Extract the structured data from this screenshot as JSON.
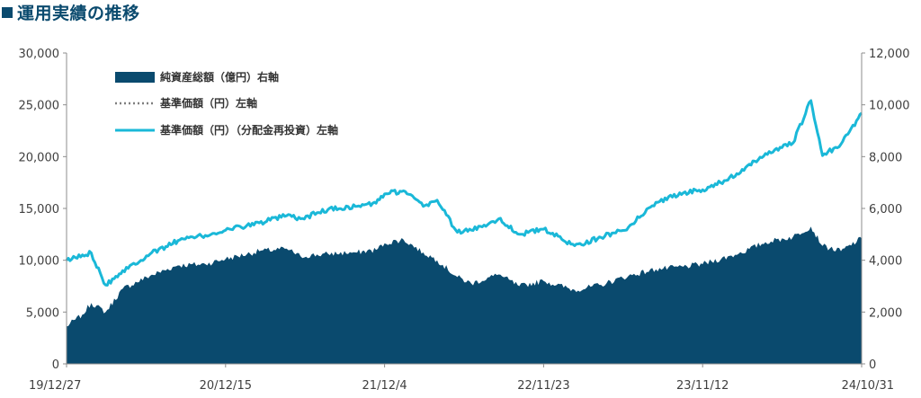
{
  "page": {
    "title": "運用実績の推移"
  },
  "chart_data": {
    "type": "line",
    "title": "運用実績の推移",
    "xlabel": "",
    "ylabel": "",
    "x_tick_labels": [
      "19/12/27",
      "20/12/15",
      "21/12/4",
      "22/11/23",
      "23/11/12",
      "24/10/31"
    ],
    "x_range": [
      "2019-12-27",
      "2024-10-31"
    ],
    "y_left": {
      "min": 0,
      "max": 30000,
      "ticks": [
        0,
        5000,
        10000,
        15000,
        20000,
        25000,
        30000
      ],
      "tick_labels": [
        "0",
        "5,000",
        "10,000",
        "15,000",
        "20,000",
        "25,000",
        "30,000"
      ]
    },
    "y_right": {
      "min": 0,
      "max": 12000,
      "ticks": [
        0,
        2000,
        4000,
        6000,
        8000,
        10000,
        12000
      ],
      "tick_labels": [
        "0",
        "2,000",
        "4,000",
        "6,000",
        "8,000",
        "10,000",
        "12,000"
      ]
    },
    "grid": false,
    "legend_position": "top-left",
    "series": [
      {
        "name": "純資産総額（億円）右軸",
        "kind": "area",
        "axis": "right",
        "color": "#0a4a6e",
        "points": [
          [
            "2019-12-27",
            1450
          ],
          [
            "2020-01-31",
            1900
          ],
          [
            "2020-02-20",
            2350
          ],
          [
            "2020-03-23",
            2000
          ],
          [
            "2020-04-30",
            2900
          ],
          [
            "2020-06-30",
            3400
          ],
          [
            "2020-08-31",
            3800
          ],
          [
            "2020-10-31",
            3850
          ],
          [
            "2020-12-15",
            4050
          ],
          [
            "2021-02-28",
            4350
          ],
          [
            "2021-04-30",
            4450
          ],
          [
            "2021-05-31",
            4150
          ],
          [
            "2021-07-31",
            4250
          ],
          [
            "2021-09-30",
            4300
          ],
          [
            "2021-11-15",
            4400
          ],
          [
            "2021-12-04",
            4650
          ],
          [
            "2022-01-15",
            4800
          ],
          [
            "2022-02-28",
            4300
          ],
          [
            "2022-03-31",
            4000
          ],
          [
            "2022-05-15",
            3350
          ],
          [
            "2022-06-15",
            3100
          ],
          [
            "2022-08-15",
            3450
          ],
          [
            "2022-09-30",
            3000
          ],
          [
            "2022-11-23",
            3200
          ],
          [
            "2023-01-31",
            2850
          ],
          [
            "2023-03-31",
            3050
          ],
          [
            "2023-05-31",
            3400
          ],
          [
            "2023-07-31",
            3650
          ],
          [
            "2023-09-30",
            3750
          ],
          [
            "2023-11-12",
            3850
          ],
          [
            "2024-01-31",
            4250
          ],
          [
            "2024-03-31",
            4700
          ],
          [
            "2024-05-31",
            4900
          ],
          [
            "2024-07-10",
            5300
          ],
          [
            "2024-08-05",
            4550
          ],
          [
            "2024-09-15",
            4350
          ],
          [
            "2024-10-31",
            4850
          ]
        ]
      },
      {
        "name": "基準価額（円）左軸",
        "kind": "dotted-line",
        "axis": "left",
        "color": "#7f7f7f",
        "points": [
          [
            "2019-12-27",
            10000
          ],
          [
            "2020-02-20",
            10700
          ],
          [
            "2020-03-23",
            7600
          ],
          [
            "2020-04-30",
            9000
          ],
          [
            "2020-06-30",
            10600
          ],
          [
            "2020-08-31",
            11900
          ],
          [
            "2020-10-31",
            12400
          ],
          [
            "2020-12-15",
            12900
          ],
          [
            "2021-02-28",
            13600
          ],
          [
            "2021-04-30",
            14300
          ],
          [
            "2021-05-31",
            14000
          ],
          [
            "2021-07-31",
            14900
          ],
          [
            "2021-09-30",
            15200
          ],
          [
            "2021-11-15",
            15500
          ],
          [
            "2021-12-04",
            16400
          ],
          [
            "2022-01-15",
            16700
          ],
          [
            "2022-02-28",
            15200
          ],
          [
            "2022-03-31",
            15800
          ],
          [
            "2022-05-15",
            12700
          ],
          [
            "2022-06-15",
            12900
          ],
          [
            "2022-08-15",
            14000
          ],
          [
            "2022-09-30",
            12500
          ],
          [
            "2022-11-23",
            13000
          ],
          [
            "2023-01-31",
            11400
          ],
          [
            "2023-03-31",
            12200
          ],
          [
            "2023-05-31",
            13200
          ],
          [
            "2023-07-31",
            15600
          ],
          [
            "2023-09-30",
            16500
          ],
          [
            "2023-11-12",
            16800
          ],
          [
            "2024-01-31",
            18300
          ],
          [
            "2024-03-31",
            20300
          ],
          [
            "2024-05-31",
            21300
          ],
          [
            "2024-07-10",
            25400
          ],
          [
            "2024-08-05",
            20100
          ],
          [
            "2024-09-15",
            21200
          ],
          [
            "2024-10-31",
            24200
          ]
        ]
      },
      {
        "name": "基準価額（円）（分配金再投資）左軸",
        "kind": "line",
        "axis": "left",
        "color": "#1ab8d8",
        "points": [
          [
            "2019-12-27",
            10000
          ],
          [
            "2020-02-20",
            10700
          ],
          [
            "2020-03-23",
            7600
          ],
          [
            "2020-04-30",
            9000
          ],
          [
            "2020-06-30",
            10600
          ],
          [
            "2020-08-31",
            11900
          ],
          [
            "2020-10-31",
            12400
          ],
          [
            "2020-12-15",
            12900
          ],
          [
            "2021-02-28",
            13600
          ],
          [
            "2021-04-30",
            14300
          ],
          [
            "2021-05-31",
            14000
          ],
          [
            "2021-07-31",
            14900
          ],
          [
            "2021-09-30",
            15200
          ],
          [
            "2021-11-15",
            15500
          ],
          [
            "2021-12-04",
            16400
          ],
          [
            "2022-01-15",
            16700
          ],
          [
            "2022-02-28",
            15200
          ],
          [
            "2022-03-31",
            15800
          ],
          [
            "2022-05-15",
            12700
          ],
          [
            "2022-06-15",
            12900
          ],
          [
            "2022-08-15",
            14000
          ],
          [
            "2022-09-30",
            12500
          ],
          [
            "2022-11-23",
            13000
          ],
          [
            "2023-01-31",
            11400
          ],
          [
            "2023-03-31",
            12200
          ],
          [
            "2023-05-31",
            13200
          ],
          [
            "2023-07-31",
            15600
          ],
          [
            "2023-09-30",
            16500
          ],
          [
            "2023-11-12",
            16800
          ],
          [
            "2024-01-31",
            18300
          ],
          [
            "2024-03-31",
            20300
          ],
          [
            "2024-05-31",
            21300
          ],
          [
            "2024-07-10",
            25400
          ],
          [
            "2024-08-05",
            20100
          ],
          [
            "2024-09-15",
            21200
          ],
          [
            "2024-10-31",
            24200
          ]
        ]
      }
    ]
  }
}
